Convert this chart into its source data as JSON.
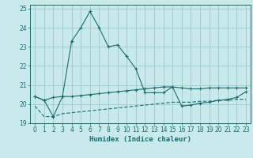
{
  "xlabel": "Humidex (Indice chaleur)",
  "background_color": "#c8eaea",
  "grid_color": "#a0c8c8",
  "line_color": "#1a6b6b",
  "xlim": [
    -0.5,
    23.5
  ],
  "ylim": [
    19,
    25.2
  ],
  "yticks": [
    19,
    20,
    21,
    22,
    23,
    24,
    25
  ],
  "xticks": [
    0,
    1,
    2,
    3,
    4,
    5,
    6,
    7,
    8,
    9,
    10,
    11,
    12,
    13,
    14,
    15,
    16,
    17,
    18,
    19,
    20,
    21,
    22,
    23
  ],
  "series1_x": [
    0,
    1,
    2,
    3,
    4,
    5,
    6,
    7,
    8,
    9,
    10,
    11,
    12,
    13,
    14,
    15,
    16,
    17,
    18,
    19,
    20,
    21,
    22,
    23
  ],
  "series1_y": [
    20.4,
    20.2,
    19.35,
    20.4,
    23.3,
    24.0,
    24.85,
    24.0,
    23.0,
    23.1,
    22.5,
    21.85,
    20.6,
    20.6,
    20.6,
    20.9,
    19.9,
    19.95,
    20.05,
    20.1,
    20.2,
    20.25,
    20.35,
    20.65
  ],
  "series2_x": [
    0,
    1,
    2,
    3,
    4,
    5,
    6,
    7,
    8,
    9,
    10,
    11,
    12,
    13,
    14,
    15,
    16,
    17,
    18,
    19,
    20,
    21,
    22,
    23
  ],
  "series2_y": [
    20.4,
    20.2,
    20.35,
    20.4,
    20.4,
    20.45,
    20.5,
    20.55,
    20.6,
    20.65,
    20.7,
    20.75,
    20.8,
    20.85,
    20.9,
    20.9,
    20.85,
    20.8,
    20.8,
    20.85,
    20.85,
    20.85,
    20.85,
    20.85
  ],
  "series3_x": [
    0,
    1,
    2,
    3,
    4,
    5,
    6,
    7,
    8,
    9,
    10,
    11,
    12,
    13,
    14,
    15,
    16,
    17,
    18,
    19,
    20,
    21,
    22,
    23
  ],
  "series3_y": [
    19.9,
    19.35,
    19.35,
    19.5,
    19.55,
    19.6,
    19.65,
    19.7,
    19.75,
    19.8,
    19.85,
    19.9,
    19.95,
    20.0,
    20.05,
    20.1,
    20.1,
    20.1,
    20.15,
    20.15,
    20.2,
    20.2,
    20.25,
    20.25
  ]
}
